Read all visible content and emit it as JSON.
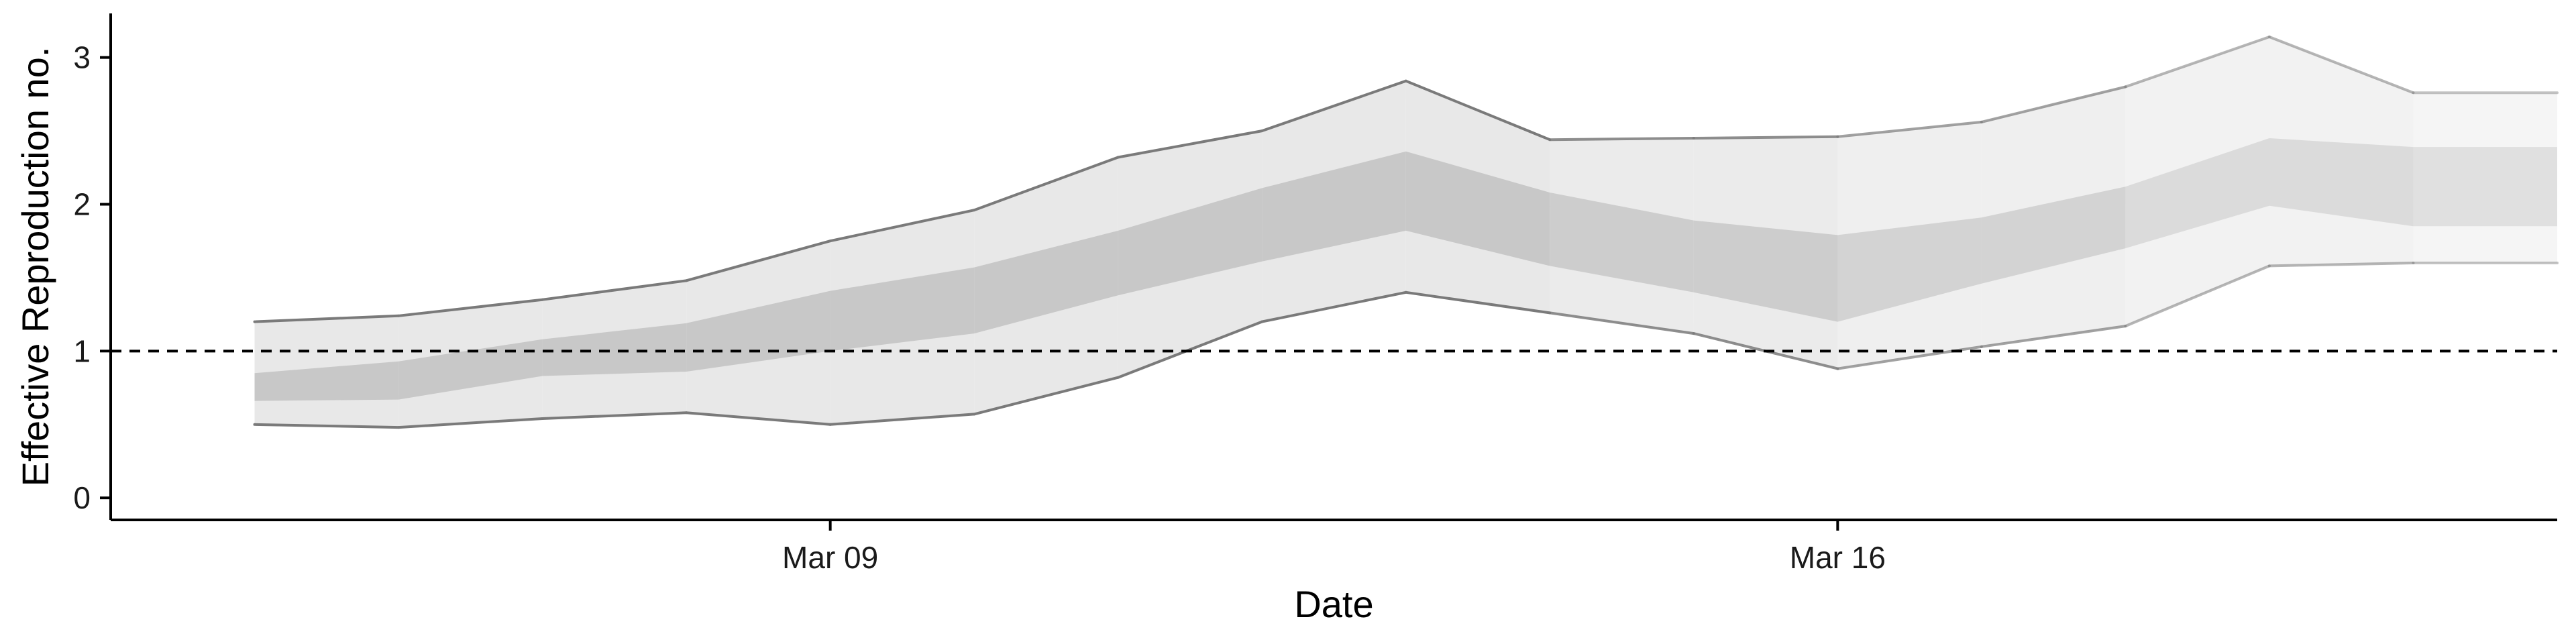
{
  "chart_data": {
    "type": "area",
    "xlabel": "Date",
    "ylabel": "Effective Reproduction no.",
    "x_tick_labels": [
      "Mar 09",
      "Mar 16"
    ],
    "x_tick_dates": [
      "2020-03-09",
      "2020-03-16"
    ],
    "y_ticks": [
      0,
      1,
      2,
      3
    ],
    "ylim": [
      -0.15,
      3.3
    ],
    "xlim": [
      "2020-03-04",
      "2020-03-21"
    ],
    "reference_line": {
      "y": 1,
      "style": "dashed"
    },
    "grid": false,
    "dates": [
      "2020-03-05",
      "2020-03-06",
      "2020-03-07",
      "2020-03-08",
      "2020-03-09",
      "2020-03-10",
      "2020-03-11",
      "2020-03-12",
      "2020-03-13",
      "2020-03-14",
      "2020-03-15",
      "2020-03-16",
      "2020-03-17",
      "2020-03-18",
      "2020-03-19",
      "2020-03-20",
      "2020-03-21"
    ],
    "series": [
      {
        "band": "outer",
        "lower": [
          0.5,
          0.48,
          0.54,
          0.58,
          0.5,
          0.57,
          0.82,
          1.2,
          1.4,
          1.26,
          1.12,
          0.88,
          1.03,
          1.17,
          1.58,
          1.6,
          1.6
        ],
        "upper": [
          1.2,
          1.24,
          1.35,
          1.48,
          1.75,
          1.96,
          2.32,
          2.5,
          2.84,
          2.44,
          2.45,
          2.46,
          2.56,
          2.8,
          3.14,
          2.76,
          2.76
        ]
      },
      {
        "band": "inner",
        "lower": [
          0.66,
          0.67,
          0.83,
          0.86,
          1.0,
          1.12,
          1.38,
          1.61,
          1.82,
          1.58,
          1.4,
          1.2,
          1.46,
          1.7,
          1.99,
          1.85,
          1.85
        ],
        "upper": [
          0.85,
          0.93,
          1.08,
          1.19,
          1.41,
          1.57,
          1.82,
          2.11,
          2.36,
          2.08,
          1.89,
          1.79,
          1.91,
          2.12,
          2.45,
          2.39,
          2.39
        ]
      }
    ],
    "segment_opacity": [
      1,
      1,
      1,
      1,
      1,
      1,
      1,
      1,
      1,
      0.85,
      0.85,
      0.7,
      0.7,
      0.55,
      0.55,
      0.45,
      0.45
    ],
    "colors": {
      "outer_band": "#e8e8e8",
      "inner_band": "#c8c8c8",
      "edge_line": "#7a7a7a",
      "axis": "#000000",
      "reference_line": "#000000"
    }
  }
}
